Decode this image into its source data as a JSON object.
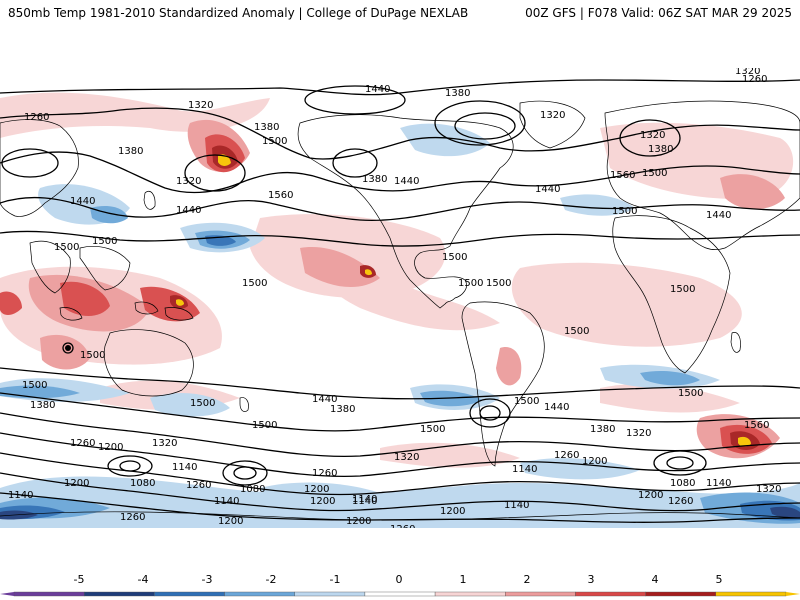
{
  "header": {
    "title_left": "850mb Temp 1981-2010 Standardized Anomaly | College of DuPage NEXLAB",
    "title_right": "00Z GFS | F078 Valid: 06Z SAT MAR 29 2025"
  },
  "colorbar": {
    "ticks": [
      "-5",
      "-4",
      "-3",
      "-2",
      "-1",
      "0",
      "1",
      "2",
      "3",
      "4",
      "5"
    ],
    "colors": [
      "#6a3d9a",
      "#1f3d7a",
      "#2f6fb5",
      "#6aa6d8",
      "#bcd7ee",
      "#ffffff",
      "#f7d4d4",
      "#ec9c9c",
      "#d84848",
      "#a51d1d",
      "#f7c400"
    ]
  },
  "contour_labels": [
    {
      "text": "1440"
    },
    {
      "text": "1380"
    },
    {
      "text": "1320"
    },
    {
      "text": "1260"
    },
    {
      "text": "1320"
    },
    {
      "text": "1260"
    },
    {
      "text": "1320"
    },
    {
      "text": "1380"
    },
    {
      "text": "1380"
    },
    {
      "text": "1500"
    },
    {
      "text": "1320"
    },
    {
      "text": "1560"
    },
    {
      "text": "1440"
    },
    {
      "text": "1440"
    },
    {
      "text": "1500"
    },
    {
      "text": "1500"
    },
    {
      "text": "1380"
    },
    {
      "text": "1440"
    },
    {
      "text": "1440"
    },
    {
      "text": "1560"
    },
    {
      "text": "1320"
    },
    {
      "text": "1380"
    },
    {
      "text": "1500"
    },
    {
      "text": "1500"
    },
    {
      "text": "1440"
    },
    {
      "text": "1500"
    },
    {
      "text": "1500"
    },
    {
      "text": "1500"
    },
    {
      "text": "1500"
    },
    {
      "text": "1500"
    },
    {
      "text": "1500"
    },
    {
      "text": "1500"
    },
    {
      "text": "1500"
    },
    {
      "text": "1500"
    },
    {
      "text": "1440"
    },
    {
      "text": "1380"
    },
    {
      "text": "1500"
    },
    {
      "text": "1500"
    },
    {
      "text": "1440"
    },
    {
      "text": "1380"
    },
    {
      "text": "1320"
    },
    {
      "text": "1560"
    },
    {
      "text": "1500"
    },
    {
      "text": "1500"
    },
    {
      "text": "1380"
    },
    {
      "text": "1260"
    },
    {
      "text": "1200"
    },
    {
      "text": "1320"
    },
    {
      "text": "1140"
    },
    {
      "text": "1080"
    },
    {
      "text": "1200"
    },
    {
      "text": "1140"
    },
    {
      "text": "1080"
    },
    {
      "text": "1260"
    },
    {
      "text": "1200"
    },
    {
      "text": "1320"
    },
    {
      "text": "1260"
    },
    {
      "text": "1140"
    },
    {
      "text": "1200"
    },
    {
      "text": "1140"
    },
    {
      "text": "1200"
    },
    {
      "text": "1260"
    },
    {
      "text": "1140"
    },
    {
      "text": "1200"
    },
    {
      "text": "1080"
    },
    {
      "text": "1140"
    },
    {
      "text": "1320"
    },
    {
      "text": "1260"
    },
    {
      "text": "1200"
    },
    {
      "text": "1140"
    },
    {
      "text": "1260"
    },
    {
      "text": "1200"
    },
    {
      "text": "1140"
    },
    {
      "text": "1260"
    },
    {
      "text": "1200"
    }
  ]
}
